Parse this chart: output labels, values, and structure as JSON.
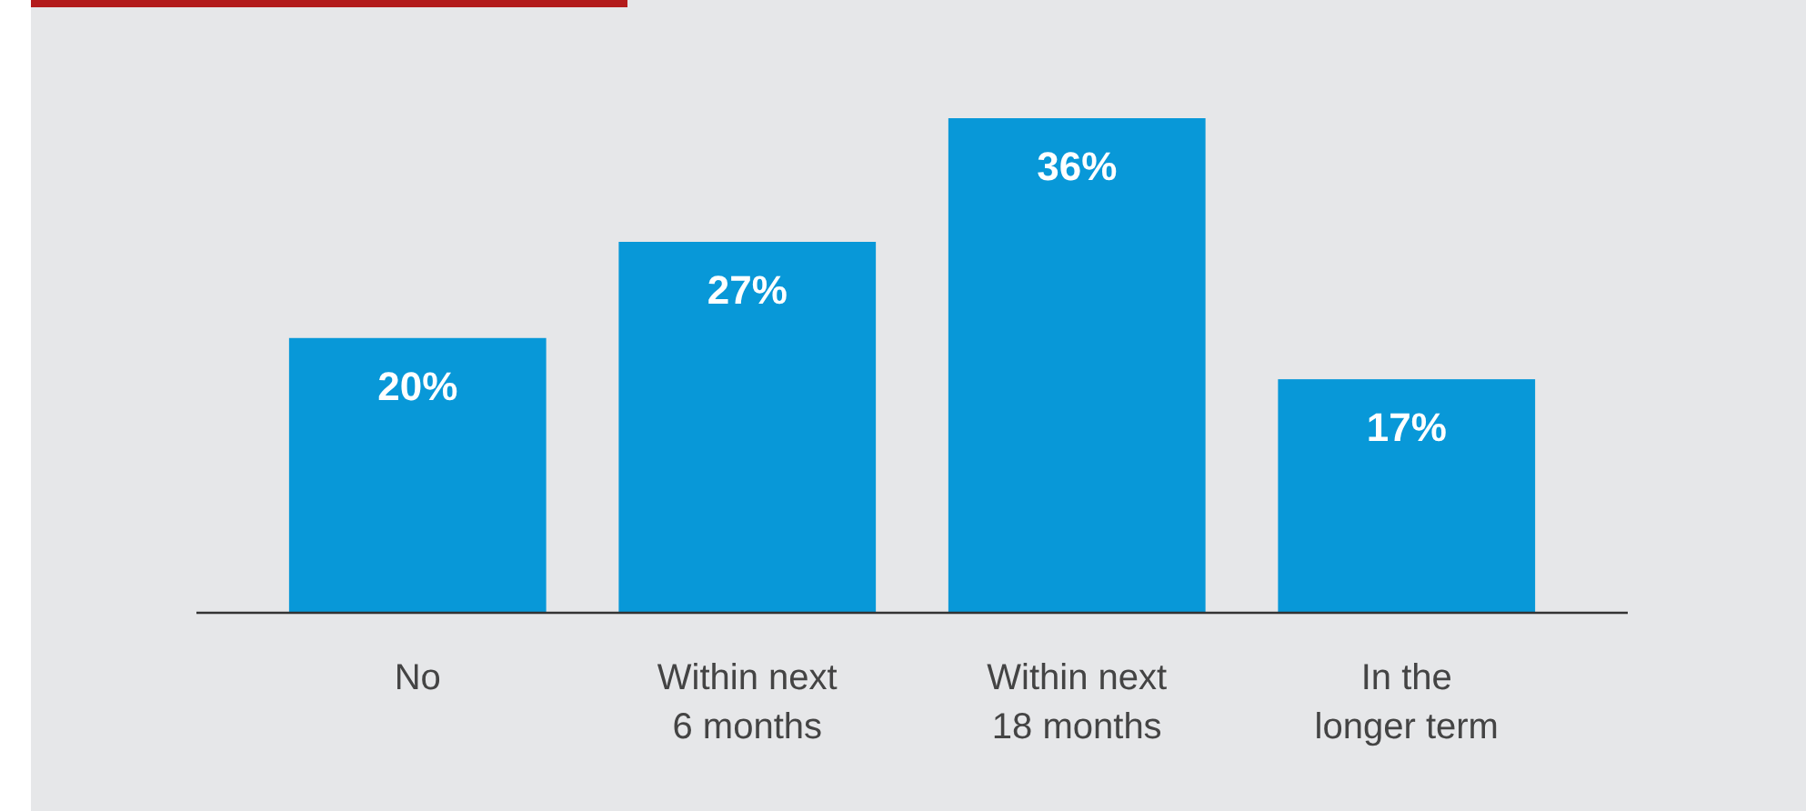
{
  "chart_data": {
    "type": "bar",
    "categories": [
      "No",
      "Within next 6 months",
      "Within next 18 months",
      "In the longer term"
    ],
    "values": [
      20,
      27,
      36,
      17
    ],
    "value_labels": [
      "20%",
      "27%",
      "36%",
      "17%"
    ],
    "color": "#0898d8"
  }
}
